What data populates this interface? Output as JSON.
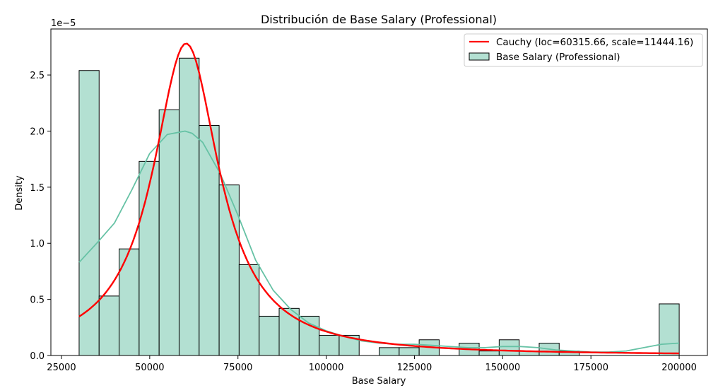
{
  "chart_data": {
    "type": "histogram",
    "title": "Distribución de Base Salary (Professional)",
    "xlabel": "Base Salary",
    "ylabel": "Density",
    "y_scale_label": "1e−5",
    "y_multiplier": 1e-05,
    "xlim": [
      22000,
      208000
    ],
    "ylim": [
      0,
      2.91
    ],
    "x_ticks": [
      25000,
      50000,
      75000,
      100000,
      125000,
      150000,
      175000,
      200000
    ],
    "y_ticks": [
      0.0,
      0.5,
      1.0,
      1.5,
      2.0,
      2.5
    ],
    "x_tick_labels": [
      "25000",
      "50000",
      "75000",
      "100000",
      "125000",
      "150000",
      "175000",
      "200000"
    ],
    "y_tick_labels": [
      "0.0",
      "0.5",
      "1.0",
      "1.5",
      "2.0",
      "2.5"
    ],
    "legend_position": "top-right",
    "bin_start": 30000,
    "bin_width": 5667,
    "bin_count": 30,
    "histogram": {
      "name": "Base Salary (Professional)",
      "fill": "#b3e0d2",
      "edge": "#000000",
      "values": [
        2.54,
        0.53,
        0.95,
        1.73,
        2.19,
        2.65,
        2.05,
        1.52,
        0.81,
        0.35,
        0.42,
        0.35,
        0.18,
        0.18,
        0.0,
        0.07,
        0.07,
        0.14,
        0.0,
        0.11,
        0.04,
        0.14,
        0.04,
        0.11,
        0.04,
        0.0,
        0.0,
        0.0,
        0.0,
        0.46
      ]
    },
    "kde": {
      "color": "#66c2a5",
      "x": [
        30000,
        35000,
        40000,
        45000,
        50000,
        55000,
        60000,
        62000,
        65000,
        70000,
        75000,
        80000,
        85000,
        90000,
        95000,
        100000,
        105000,
        110000,
        115000,
        120000,
        125000,
        130000,
        135000,
        140000,
        145000,
        150000,
        155000,
        160000,
        165000,
        170000,
        175000,
        180000,
        185000,
        190000,
        195000,
        200000
      ],
      "y": [
        0.83,
        1.0,
        1.18,
        1.48,
        1.8,
        1.97,
        2.0,
        1.98,
        1.9,
        1.62,
        1.25,
        0.85,
        0.58,
        0.41,
        0.29,
        0.22,
        0.17,
        0.13,
        0.11,
        0.1,
        0.1,
        0.09,
        0.08,
        0.07,
        0.07,
        0.08,
        0.08,
        0.07,
        0.05,
        0.04,
        0.03,
        0.03,
        0.04,
        0.07,
        0.1,
        0.11
      ]
    },
    "cauchy": {
      "name": "Cauchy (loc=60315.66, scale=11444.16)",
      "color": "#ff0000",
      "loc": 60315.66,
      "scale": 11444.16,
      "x_range": [
        30000,
        200000
      ]
    }
  }
}
